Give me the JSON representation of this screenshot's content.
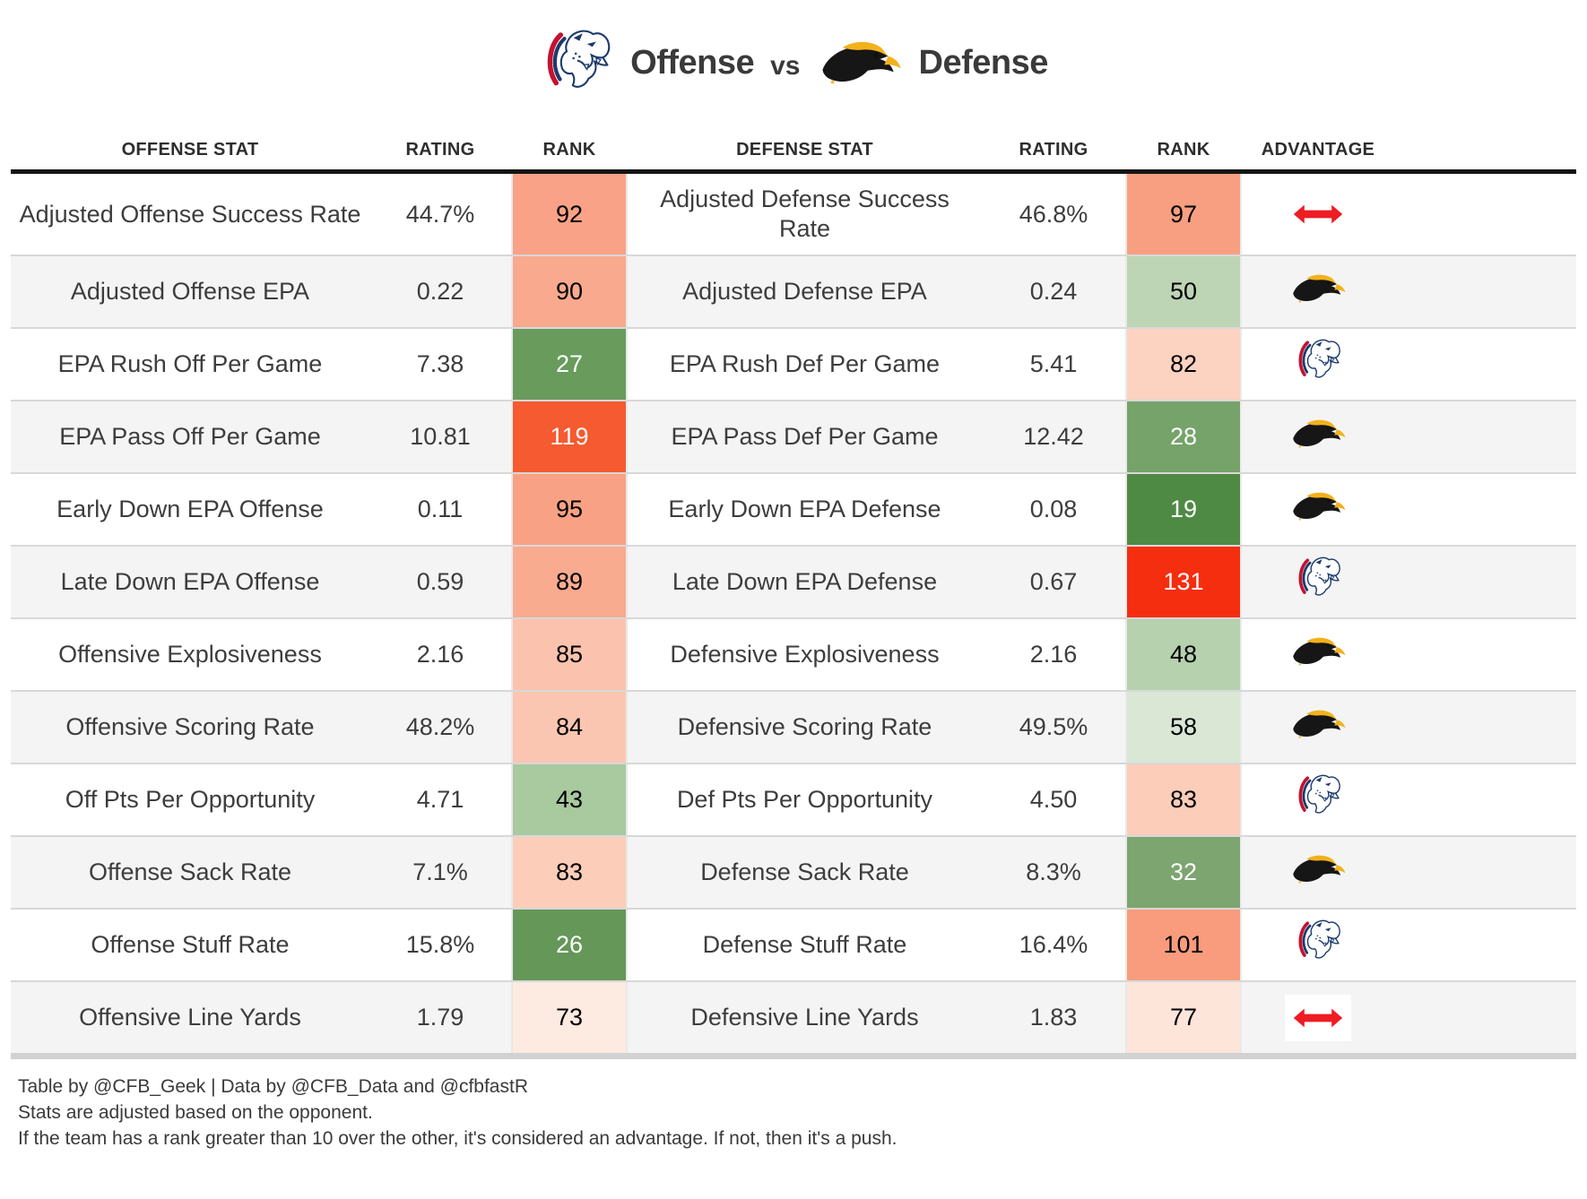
{
  "title": {
    "offense": "Offense",
    "vs": "vs",
    "defense": "Defense",
    "offense_team_icon": "jaguar-logo",
    "defense_team_icon": "eagle-logo"
  },
  "colors": {
    "header_border": "#141414",
    "row_divider": "#d8d8d8",
    "alt_row_bg": "#f4f4f4",
    "table_end_bar": "#d2d2d2",
    "text": "#3d3d3d",
    "push_red": "#ee1c23",
    "jaguar_navy": "#1d3a6d",
    "jaguar_red": "#c41230",
    "eagle_black": "#161616",
    "eagle_gold": "#f2b21c"
  },
  "chart_data": {
    "type": "table",
    "title": "Offense vs Defense",
    "columns": [
      "OFFENSE STAT",
      "RATING",
      "RANK",
      "DEFENSE STAT",
      "RATING",
      "RANK",
      "ADVANTAGE"
    ],
    "rows": [
      {
        "offense_stat": "Adjusted Offense Success Rate",
        "offense_rating": "44.7%",
        "offense_rank": "92",
        "offense_rank_bg": "#f9a287",
        "offense_rank_fg": "#000000",
        "defense_stat": "Adjusted Defense Success Rate",
        "defense_rating": "46.8%",
        "defense_rank": "97",
        "defense_rank_bg": "#f99f81",
        "defense_rank_fg": "#000000",
        "advantage": "push"
      },
      {
        "offense_stat": "Adjusted Offense EPA",
        "offense_rating": "0.22",
        "offense_rank": "90",
        "offense_rank_bg": "#f9a98d",
        "offense_rank_fg": "#000000",
        "defense_stat": "Adjusted Defense EPA",
        "defense_rating": "0.24",
        "defense_rank": "50",
        "defense_rank_bg": "#bdd5b4",
        "defense_rank_fg": "#000000",
        "advantage": "defense"
      },
      {
        "offense_stat": "EPA Rush Off Per Game",
        "offense_rating": "7.38",
        "offense_rank": "27",
        "offense_rank_bg": "#689b5c",
        "offense_rank_fg": "#ffffff",
        "defense_stat": "EPA Rush Def Per Game",
        "defense_rating": "5.41",
        "defense_rank": "82",
        "defense_rank_bg": "#fcd2c1",
        "defense_rank_fg": "#000000",
        "advantage": "offense"
      },
      {
        "offense_stat": "EPA Pass Off Per Game",
        "offense_rating": "10.81",
        "offense_rank": "119",
        "offense_rank_bg": "#f55a30",
        "offense_rank_fg": "#ffffff",
        "defense_stat": "EPA Pass Def Per Game",
        "defense_rating": "12.42",
        "defense_rank": "28",
        "defense_rank_bg": "#75a369",
        "defense_rank_fg": "#ffffff",
        "advantage": "defense"
      },
      {
        "offense_stat": "Early Down EPA Offense",
        "offense_rating": "0.11",
        "offense_rank": "95",
        "offense_rank_bg": "#f9a184",
        "offense_rank_fg": "#000000",
        "defense_stat": "Early Down EPA Defense",
        "defense_rating": "0.08",
        "defense_rank": "19",
        "defense_rank_bg": "#4f8a44",
        "defense_rank_fg": "#ffffff",
        "advantage": "defense"
      },
      {
        "offense_stat": "Late Down EPA Offense",
        "offense_rating": "0.59",
        "offense_rank": "89",
        "offense_rank_bg": "#f9ab90",
        "offense_rank_fg": "#000000",
        "defense_stat": "Late Down EPA Defense",
        "defense_rating": "0.67",
        "defense_rank": "131",
        "defense_rank_bg": "#f52e10",
        "defense_rank_fg": "#ffffff",
        "advantage": "offense"
      },
      {
        "offense_stat": "Offensive Explosiveness",
        "offense_rating": "2.16",
        "offense_rank": "85",
        "offense_rank_bg": "#fbc3ad",
        "offense_rank_fg": "#000000",
        "defense_stat": "Defensive Explosiveness",
        "defense_rating": "2.16",
        "defense_rank": "48",
        "defense_rank_bg": "#b6d1ad",
        "defense_rank_fg": "#000000",
        "advantage": "defense"
      },
      {
        "offense_stat": "Offensive Scoring Rate",
        "offense_rating": "48.2%",
        "offense_rank": "84",
        "offense_rank_bg": "#fbc6b1",
        "offense_rank_fg": "#000000",
        "defense_stat": "Defensive Scoring Rate",
        "defense_rating": "49.5%",
        "defense_rank": "58",
        "defense_rank_bg": "#d9e7d4",
        "defense_rank_fg": "#000000",
        "advantage": "defense"
      },
      {
        "offense_stat": "Off Pts Per Opportunity",
        "offense_rating": "4.71",
        "offense_rank": "43",
        "offense_rank_bg": "#a9c99f",
        "offense_rank_fg": "#000000",
        "defense_stat": "Def Pts Per Opportunity",
        "defense_rating": "4.50",
        "defense_rank": "83",
        "defense_rank_bg": "#fccdb9",
        "defense_rank_fg": "#000000",
        "advantage": "offense"
      },
      {
        "offense_stat": "Offense Sack Rate",
        "offense_rating": "7.1%",
        "offense_rank": "83",
        "offense_rank_bg": "#fccdb9",
        "offense_rank_fg": "#000000",
        "defense_stat": "Defense Sack Rate",
        "defense_rating": "8.3%",
        "defense_rank": "32",
        "defense_rank_bg": "#7ca56f",
        "defense_rank_fg": "#ffffff",
        "advantage": "defense"
      },
      {
        "offense_stat": "Offense Stuff Rate",
        "offense_rating": "15.8%",
        "offense_rank": "26",
        "offense_rank_bg": "#659759",
        "offense_rank_fg": "#ffffff",
        "defense_stat": "Defense Stuff Rate",
        "defense_rating": "16.4%",
        "defense_rank": "101",
        "defense_rank_bg": "#f99c7d",
        "defense_rank_fg": "#000000",
        "advantage": "offense"
      },
      {
        "offense_stat": "Offensive Line Yards",
        "offense_rating": "1.79",
        "offense_rank": "73",
        "offense_rank_bg": "#fdeae1",
        "offense_rank_fg": "#000000",
        "defense_stat": "Defensive Line Yards",
        "defense_rating": "1.83",
        "defense_rank": "77",
        "defense_rank_bg": "#fde5da",
        "defense_rank_fg": "#000000",
        "advantage": "push"
      }
    ]
  },
  "footer": {
    "line1": "Table by @CFB_Geek | Data by @CFB_Data and @cfbfastR",
    "line2": "Stats are adjusted based on the opponent.",
    "line3": "If the team has a rank greater than 10 over the other, it's considered an advantage. If not, then it's a push."
  }
}
